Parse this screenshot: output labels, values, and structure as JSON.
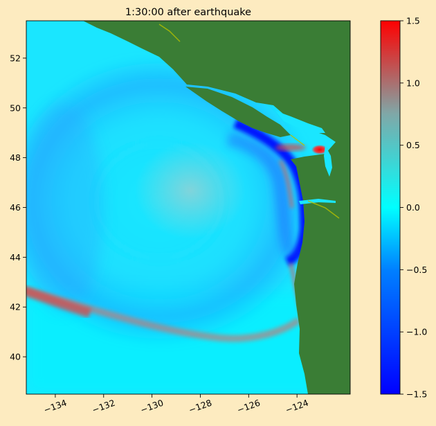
{
  "figure": {
    "background": "#fdebc0"
  },
  "chart_data": [
    {
      "type": "heatmap",
      "title": "1:30:00 after earthquake",
      "xlabel": "",
      "ylabel": "",
      "xlim": [
        -135.2,
        -121.8
      ],
      "ylim": [
        38.5,
        53.5
      ],
      "xticks": [
        -134,
        -132,
        -130,
        -128,
        -126,
        -124
      ],
      "yticks": [
        40,
        42,
        44,
        46,
        48,
        50,
        52
      ],
      "xtick_labels": [
        "−134",
        "−132",
        "−130",
        "−128",
        "−126",
        "−124"
      ],
      "ytick_labels": [
        "40",
        "42",
        "44",
        "46",
        "48",
        "50",
        "52"
      ],
      "land_color": "#3a7d35",
      "ocean_base_color": "#1ae6ff",
      "field_features": [
        {
          "kind": "negative-ring",
          "center": [
            -128.5,
            46.8
          ],
          "radius_deg": 4.5,
          "value": -0.35
        },
        {
          "kind": "positive-center",
          "center": [
            -128.3,
            46.6
          ],
          "radius_deg": 1.8,
          "value": 0.25
        },
        {
          "kind": "positive-front",
          "from": [
            -135.2,
            42.6
          ],
          "to": [
            -131.0,
            41.4
          ],
          "value": 0.8
        },
        {
          "kind": "coastal-trough",
          "along": "coast",
          "lat_range": [
            43.8,
            48.9
          ],
          "value": -1.5
        },
        {
          "kind": "strait-peak",
          "center": [
            -123.7,
            48.3
          ],
          "value": 1.5
        }
      ],
      "grid": false,
      "legend": "none"
    },
    {
      "type": "colorbar",
      "colormap": [
        "#0000ff",
        "#00ffff",
        "#ff0000"
      ],
      "range": [
        -1.5,
        1.5
      ],
      "ticks": [
        -1.5,
        -1.0,
        -0.5,
        0.0,
        0.5,
        1.0,
        1.5
      ],
      "tick_labels": [
        "−1.5",
        "−1.0",
        "−0.5",
        "0.0",
        "0.5",
        "1.0",
        "1.5"
      ]
    }
  ]
}
